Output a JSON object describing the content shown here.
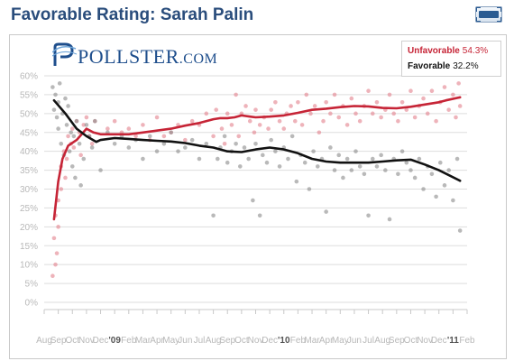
{
  "header": {
    "title": "Favorable Rating: Sarah Palin",
    "expand_icon": "expand-chart-icon"
  },
  "logo": {
    "text_big": "POLLSTER",
    "text_small": ".COM",
    "icon": "pollster-logo-icon"
  },
  "legend": [
    {
      "name": "Unfavorable",
      "value": "54.3%",
      "color": "#c62436"
    },
    {
      "name": "Favorable",
      "value": "32.2%",
      "color": "#111111"
    }
  ],
  "colors": {
    "unfavorable": "#c62436",
    "favorable": "#111111",
    "unfavorable_dots": "#e3808c",
    "favorable_dots": "#8a8a8a",
    "grid": "#dddddd",
    "tick_text": "#b8b8b8"
  },
  "chart_data": {
    "type": "line",
    "title": "",
    "ylim": [
      0,
      60
    ],
    "xlim": [
      0,
      30
    ],
    "grid": true,
    "legend_position": "top-right",
    "y_ticks": [
      "0%",
      "5%",
      "10%",
      "15%",
      "20%",
      "25%",
      "30%",
      "35%",
      "40%",
      "45%",
      "50%",
      "55%",
      "60%"
    ],
    "x_tick_labels": [
      "Aug",
      "Sep",
      "Oct",
      "Nov",
      "Dec",
      "'09",
      "Feb",
      "Mar",
      "Apr",
      "May",
      "Jun",
      "Jul",
      "Aug",
      "Sep",
      "Oct",
      "Nov",
      "Dec",
      "'10",
      "Feb",
      "Mar",
      "Apr",
      "May",
      "Jun",
      "Jul",
      "Aug",
      "Sep",
      "Oct",
      "Nov",
      "Dec",
      "'11",
      "Feb"
    ],
    "series": [
      {
        "name": "Unfavorable",
        "x": [
          0.7,
          1.0,
          1.3,
          1.7,
          2.3,
          3.0,
          3.5,
          4.0,
          5.0,
          6.0,
          7.0,
          8.0,
          9.0,
          10.0,
          11.0,
          12.0,
          12.5,
          13.0,
          13.5,
          14.0,
          14.6,
          15.0,
          16.0,
          17.0,
          18.0,
          19.0,
          20.0,
          21.0,
          22.0,
          23.0,
          24.0,
          25.0,
          26.0,
          27.0,
          28.0,
          28.5,
          29.5
        ],
        "y": [
          22,
          32,
          38,
          41.5,
          43,
          46,
          45,
          44.5,
          44.5,
          44.5,
          45,
          45.5,
          46,
          46.8,
          47.5,
          48.5,
          48.8,
          48.8,
          49,
          49.5,
          49.2,
          49,
          49.2,
          49.5,
          50.2,
          51,
          51.3,
          51.7,
          52,
          51.9,
          51.5,
          51.4,
          51.8,
          52.4,
          53,
          53.5,
          54.3
        ]
      },
      {
        "name": "Favorable",
        "x": [
          0.7,
          1.5,
          2.3,
          3.0,
          3.7,
          4.0,
          5.0,
          6.0,
          7.0,
          8.0,
          9.0,
          10.0,
          11.0,
          12.0,
          13.0,
          14.0,
          15.0,
          16.0,
          17.0,
          18.0,
          19.0,
          20.0,
          21.0,
          22.0,
          23.0,
          24.0,
          25.0,
          26.0,
          27.0,
          28.0,
          29.5
        ],
        "y": [
          53.5,
          50,
          46,
          44,
          42.5,
          43,
          43.5,
          43.3,
          43,
          42.8,
          42.6,
          42.2,
          41.5,
          41,
          40,
          39.8,
          40.5,
          41,
          40.5,
          39.5,
          38,
          37.3,
          37,
          37,
          37,
          37.3,
          37.6,
          37.8,
          36.5,
          35,
          32.2
        ]
      }
    ],
    "scatter": [
      {
        "name": "Unfavorable",
        "points": [
          [
            0.6,
            7
          ],
          [
            0.7,
            17
          ],
          [
            0.8,
            10
          ],
          [
            0.9,
            13
          ],
          [
            1.0,
            20
          ],
          [
            1.0,
            27
          ],
          [
            0.8,
            23
          ],
          [
            1.2,
            30
          ],
          [
            1.2,
            36
          ],
          [
            1.4,
            40
          ],
          [
            1.5,
            33
          ],
          [
            1.6,
            38
          ],
          [
            1.7,
            44
          ],
          [
            1.9,
            42
          ],
          [
            2.0,
            46
          ],
          [
            2.1,
            41
          ],
          [
            2.3,
            48
          ],
          [
            2.5,
            45
          ],
          [
            2.6,
            39
          ],
          [
            2.8,
            47
          ],
          [
            3.0,
            49
          ],
          [
            3.2,
            44
          ],
          [
            3.4,
            42
          ],
          [
            3.6,
            48
          ],
          [
            4.5,
            46
          ],
          [
            5.0,
            48
          ],
          [
            5.5,
            45
          ],
          [
            6.0,
            46
          ],
          [
            6.5,
            44
          ],
          [
            7.0,
            47
          ],
          [
            7.5,
            43
          ],
          [
            8.0,
            49
          ],
          [
            8.5,
            44
          ],
          [
            9.0,
            45
          ],
          [
            9.5,
            47
          ],
          [
            10.0,
            43
          ],
          [
            10.5,
            48
          ],
          [
            11.0,
            47
          ],
          [
            11.5,
            50
          ],
          [
            12.0,
            44
          ],
          [
            12.2,
            51
          ],
          [
            12.6,
            46
          ],
          [
            12.8,
            42
          ],
          [
            13.0,
            50
          ],
          [
            13.3,
            47
          ],
          [
            13.6,
            55
          ],
          [
            13.8,
            44
          ],
          [
            14.0,
            50
          ],
          [
            14.3,
            52
          ],
          [
            14.6,
            48
          ],
          [
            14.9,
            45
          ],
          [
            15.0,
            51
          ],
          [
            15.3,
            47
          ],
          [
            15.6,
            49
          ],
          [
            15.9,
            46
          ],
          [
            16.1,
            51
          ],
          [
            16.4,
            53
          ],
          [
            16.7,
            48
          ],
          [
            17.0,
            46
          ],
          [
            17.2,
            50
          ],
          [
            17.5,
            52
          ],
          [
            17.8,
            48
          ],
          [
            18.0,
            53
          ],
          [
            18.3,
            47
          ],
          [
            18.6,
            55
          ],
          [
            18.9,
            50
          ],
          [
            19.2,
            52
          ],
          [
            19.5,
            45
          ],
          [
            19.8,
            48
          ],
          [
            20.0,
            53
          ],
          [
            20.3,
            50
          ],
          [
            20.6,
            55
          ],
          [
            20.9,
            49
          ],
          [
            21.2,
            52
          ],
          [
            21.5,
            47
          ],
          [
            21.8,
            54
          ],
          [
            22.1,
            50
          ],
          [
            22.4,
            48
          ],
          [
            22.7,
            52
          ],
          [
            23.0,
            56
          ],
          [
            23.3,
            50
          ],
          [
            23.6,
            53
          ],
          [
            23.9,
            49
          ],
          [
            24.2,
            51
          ],
          [
            24.5,
            55
          ],
          [
            24.8,
            50
          ],
          [
            25.1,
            48
          ],
          [
            25.4,
            53
          ],
          [
            25.7,
            51
          ],
          [
            26.0,
            56
          ],
          [
            26.3,
            49
          ],
          [
            26.6,
            52
          ],
          [
            26.9,
            54
          ],
          [
            27.2,
            50
          ],
          [
            27.5,
            56
          ],
          [
            27.8,
            48
          ],
          [
            28.1,
            53
          ],
          [
            28.4,
            57
          ],
          [
            28.7,
            51
          ],
          [
            29.0,
            55
          ],
          [
            29.2,
            49
          ],
          [
            29.4,
            58
          ],
          [
            29.5,
            52
          ]
        ]
      },
      {
        "name": "Favorable",
        "points": [
          [
            0.6,
            57
          ],
          [
            0.7,
            51
          ],
          [
            0.8,
            55
          ],
          [
            0.9,
            49
          ],
          [
            1.0,
            53
          ],
          [
            1.0,
            46
          ],
          [
            1.1,
            58
          ],
          [
            1.2,
            42
          ],
          [
            1.3,
            50
          ],
          [
            1.4,
            39
          ],
          [
            1.5,
            54
          ],
          [
            1.6,
            47
          ],
          [
            1.7,
            52
          ],
          [
            1.8,
            40
          ],
          [
            1.9,
            45
          ],
          [
            2.0,
            36
          ],
          [
            2.1,
            44
          ],
          [
            2.2,
            33
          ],
          [
            2.3,
            48
          ],
          [
            2.5,
            42
          ],
          [
            2.6,
            31
          ],
          [
            2.8,
            38
          ],
          [
            3.0,
            47
          ],
          [
            3.2,
            44
          ],
          [
            3.4,
            41
          ],
          [
            3.6,
            48
          ],
          [
            4.0,
            35
          ],
          [
            4.5,
            45
          ],
          [
            5.0,
            42
          ],
          [
            5.5,
            44
          ],
          [
            6.0,
            41
          ],
          [
            6.5,
            43
          ],
          [
            7.0,
            38
          ],
          [
            7.5,
            44
          ],
          [
            8.0,
            40
          ],
          [
            8.5,
            42
          ],
          [
            9.0,
            45
          ],
          [
            9.5,
            40
          ],
          [
            10.0,
            41
          ],
          [
            10.5,
            43
          ],
          [
            11.0,
            38
          ],
          [
            11.5,
            42
          ],
          [
            12.0,
            23
          ],
          [
            12.3,
            38
          ],
          [
            12.5,
            41
          ],
          [
            12.8,
            44
          ],
          [
            13.0,
            37
          ],
          [
            13.3,
            40
          ],
          [
            13.6,
            42
          ],
          [
            13.9,
            36
          ],
          [
            14.2,
            41
          ],
          [
            14.5,
            38
          ],
          [
            14.8,
            27
          ],
          [
            15.0,
            42
          ],
          [
            15.3,
            23
          ],
          [
            15.5,
            39
          ],
          [
            15.8,
            37
          ],
          [
            16.1,
            43
          ],
          [
            16.4,
            40
          ],
          [
            16.7,
            36
          ],
          [
            17.0,
            41
          ],
          [
            17.3,
            38
          ],
          [
            17.6,
            44
          ],
          [
            17.9,
            32
          ],
          [
            18.2,
            39
          ],
          [
            18.5,
            37
          ],
          [
            18.8,
            30
          ],
          [
            19.1,
            40
          ],
          [
            19.4,
            36
          ],
          [
            19.7,
            38
          ],
          [
            20.0,
            24
          ],
          [
            20.3,
            41
          ],
          [
            20.6,
            35
          ],
          [
            20.9,
            39
          ],
          [
            21.2,
            33
          ],
          [
            21.5,
            38
          ],
          [
            21.8,
            35
          ],
          [
            22.1,
            40
          ],
          [
            22.4,
            36
          ],
          [
            22.7,
            34
          ],
          [
            23.0,
            23
          ],
          [
            23.3,
            38
          ],
          [
            23.6,
            36
          ],
          [
            23.9,
            39
          ],
          [
            24.2,
            35
          ],
          [
            24.5,
            22
          ],
          [
            24.8,
            38
          ],
          [
            25.1,
            34
          ],
          [
            25.4,
            40
          ],
          [
            25.7,
            37
          ],
          [
            26.0,
            35
          ],
          [
            26.3,
            33
          ],
          [
            26.6,
            38
          ],
          [
            26.9,
            30
          ],
          [
            27.2,
            36
          ],
          [
            27.5,
            34
          ],
          [
            27.8,
            28
          ],
          [
            28.1,
            37
          ],
          [
            28.4,
            31
          ],
          [
            28.7,
            35
          ],
          [
            29.0,
            27
          ],
          [
            29.3,
            38
          ],
          [
            29.5,
            19
          ]
        ]
      }
    ]
  }
}
